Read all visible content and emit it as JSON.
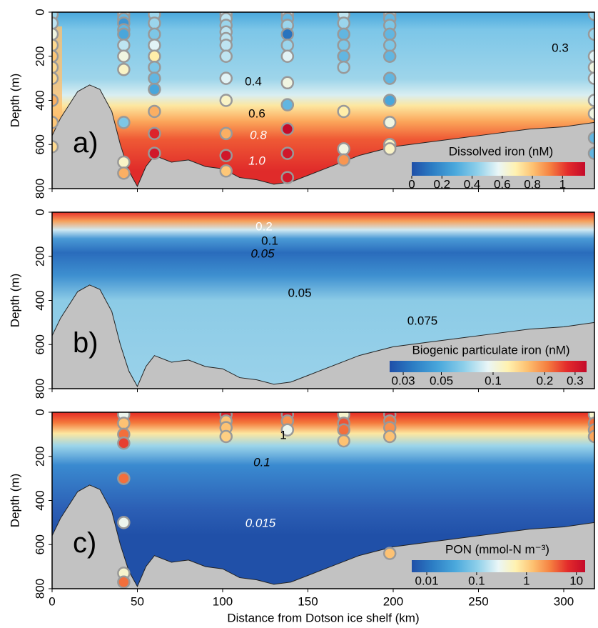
{
  "chart_data": [
    {
      "type": "contour",
      "panel_label": "a)",
      "ylabel": "Depth (m)",
      "colorbar_title": "Dissolved iron (nM)",
      "xlim": [
        0,
        318
      ],
      "xticks": [
        0,
        50,
        100,
        150,
        200,
        250,
        300
      ],
      "ylim": [
        0,
        800
      ],
      "yticks": [
        0,
        200,
        400,
        600,
        800
      ],
      "clim": [
        0,
        1.15
      ],
      "colorbar_log": false,
      "colorbar_ticks": [
        0,
        0.2,
        0.4,
        0.6,
        0.8,
        1
      ],
      "annotations": [
        "0.3",
        "0.4",
        "0.6",
        "0.8",
        "1.0"
      ],
      "bathymetry": {
        "x": [
          0,
          5,
          15,
          22,
          28,
          35,
          40,
          45,
          50,
          55,
          60,
          70,
          80,
          90,
          100,
          110,
          120,
          130,
          140,
          150,
          160,
          170,
          180,
          190,
          200,
          220,
          240,
          260,
          280,
          300,
          318
        ],
        "depth": [
          560,
          480,
          360,
          330,
          350,
          450,
          600,
          720,
          790,
          700,
          650,
          680,
          670,
          700,
          710,
          750,
          760,
          780,
          770,
          740,
          710,
          680,
          650,
          630,
          610,
          590,
          570,
          550,
          530,
          520,
          500
        ]
      },
      "stations": [
        {
          "x": 0,
          "depth": [
            10,
            50,
            100,
            150,
            200,
            250,
            300,
            400,
            500,
            610
          ],
          "values": [
            0.4,
            0.45,
            0.55,
            0.7,
            0.75,
            0.7,
            0.7,
            0.8,
            0.75,
            0.7
          ]
        },
        {
          "x": 42,
          "depth": [
            10,
            30,
            50,
            80,
            100,
            150,
            200,
            260,
            500,
            680,
            730
          ],
          "values": [
            0.4,
            0.3,
            0.2,
            0.3,
            0.25,
            0.45,
            0.55,
            0.6,
            0.35,
            0.6,
            0.8
          ]
        },
        {
          "x": 60,
          "depth": [
            10,
            50,
            100,
            150,
            200,
            250,
            300,
            350,
            450,
            550,
            640
          ],
          "values": [
            0.4,
            0.4,
            0.35,
            0.5,
            0.65,
            0.35,
            0.3,
            0.25,
            0.8,
            1.05,
            1.1
          ]
        },
        {
          "x": 102,
          "depth": [
            10,
            30,
            60,
            90,
            120,
            150,
            200,
            300,
            400,
            550,
            650,
            720
          ],
          "values": [
            0.45,
            0.45,
            0.4,
            0.45,
            0.45,
            0.45,
            0.45,
            0.5,
            0.6,
            0.8,
            1.1,
            0.75
          ]
        },
        {
          "x": 138,
          "depth": [
            10,
            30,
            60,
            100,
            150,
            200,
            320,
            420,
            530,
            640,
            750
          ],
          "values": [
            0.45,
            0.3,
            0.4,
            0.1,
            0.4,
            0.5,
            0.55,
            0.3,
            1.15,
            1.1,
            1.1
          ]
        },
        {
          "x": 171,
          "depth": [
            10,
            50,
            100,
            150,
            200,
            250,
            450,
            620,
            670
          ],
          "values": [
            0.45,
            0.4,
            0.3,
            0.35,
            0.3,
            0.4,
            0.65,
            0.55,
            0.85
          ]
        },
        {
          "x": 198,
          "depth": [
            10,
            30,
            60,
            100,
            150,
            200,
            300,
            400,
            500,
            600,
            620
          ],
          "values": [
            0.4,
            0.3,
            0.35,
            0.3,
            0.35,
            0.3,
            0.3,
            0.25,
            0.55,
            0.6,
            0.6
          ]
        },
        {
          "x": 318,
          "depth": [
            10,
            100,
            200,
            250,
            300,
            400,
            460,
            570,
            640
          ],
          "values": [
            0.4,
            0.4,
            0.5,
            0.55,
            0.5,
            0.5,
            0.55,
            0.3,
            0.3
          ]
        }
      ]
    },
    {
      "type": "contour",
      "panel_label": "b)",
      "ylabel": "Depth (m)",
      "colorbar_title": "Biogenic particulate iron (nM)",
      "xlim": [
        0,
        318
      ],
      "xticks": [
        0,
        50,
        100,
        150,
        200,
        250,
        300
      ],
      "ylim": [
        0,
        800
      ],
      "yticks": [
        0,
        200,
        400,
        600,
        800
      ],
      "clim": [
        0.025,
        0.35
      ],
      "colorbar_log": true,
      "colorbar_ticks": [
        0.03,
        0.05,
        0.1,
        0.2,
        0.3
      ],
      "annotations": [
        "0.2",
        "0.1",
        "0.05",
        "0.05",
        "0.075"
      ],
      "bathymetry": {
        "x": [
          0,
          5,
          15,
          22,
          28,
          35,
          40,
          45,
          50,
          55,
          60,
          70,
          80,
          90,
          100,
          110,
          120,
          130,
          140,
          150,
          160,
          170,
          180,
          190,
          200,
          220,
          240,
          260,
          280,
          300,
          318
        ],
        "depth": [
          560,
          480,
          360,
          330,
          350,
          450,
          600,
          720,
          790,
          700,
          650,
          680,
          670,
          700,
          710,
          750,
          760,
          780,
          770,
          740,
          710,
          680,
          650,
          630,
          610,
          590,
          570,
          550,
          530,
          520,
          500
        ]
      },
      "stations": []
    },
    {
      "type": "contour",
      "panel_label": "c)",
      "ylabel": "Depth (m)",
      "xlabel": "Distance from Dotson ice shelf (km)",
      "colorbar_title": "PON (mmol-N m⁻³)",
      "xlim": [
        0,
        318
      ],
      "xticks": [
        0,
        50,
        100,
        150,
        200,
        250,
        300
      ],
      "ylim": [
        0,
        800
      ],
      "yticks": [
        0,
        200,
        400,
        600,
        800
      ],
      "clim": [
        0.005,
        15
      ],
      "colorbar_log": true,
      "colorbar_ticks": [
        0.01,
        0.1,
        1,
        10
      ],
      "annotations": [
        "1",
        "0.1",
        "0.015"
      ],
      "bathymetry": {
        "x": [
          0,
          5,
          15,
          22,
          28,
          35,
          40,
          45,
          50,
          55,
          60,
          70,
          80,
          90,
          100,
          110,
          120,
          130,
          140,
          150,
          160,
          170,
          180,
          190,
          200,
          220,
          240,
          260,
          280,
          300,
          318
        ],
        "depth": [
          560,
          480,
          360,
          330,
          350,
          450,
          600,
          720,
          790,
          700,
          650,
          680,
          670,
          700,
          710,
          750,
          760,
          780,
          770,
          740,
          710,
          680,
          650,
          630,
          610,
          590,
          570,
          550,
          530,
          520,
          500
        ]
      },
      "stations": [
        {
          "x": 42,
          "depth": [
            10,
            50,
            100,
            140,
            300,
            500,
            730,
            770
          ],
          "values": [
            0.2,
            1,
            3,
            5,
            3,
            0.2,
            0.3,
            3
          ]
        },
        {
          "x": 102,
          "depth": [
            10,
            40,
            70,
            110
          ],
          "values": [
            8,
            1,
            1,
            0.8
          ]
        },
        {
          "x": 138,
          "depth": [
            10,
            40,
            80
          ],
          "values": [
            8,
            2,
            0.2
          ]
        },
        {
          "x": 171,
          "depth": [
            10,
            50,
            80,
            130
          ],
          "values": [
            0.3,
            4,
            3,
            1
          ]
        },
        {
          "x": 198,
          "depth": [
            10,
            40,
            70,
            110,
            640
          ],
          "values": [
            8,
            3,
            2,
            1,
            1
          ]
        },
        {
          "x": 318,
          "depth": [
            10,
            50,
            80,
            110
          ],
          "values": [
            0.3,
            3,
            2,
            1.5
          ]
        }
      ]
    }
  ]
}
